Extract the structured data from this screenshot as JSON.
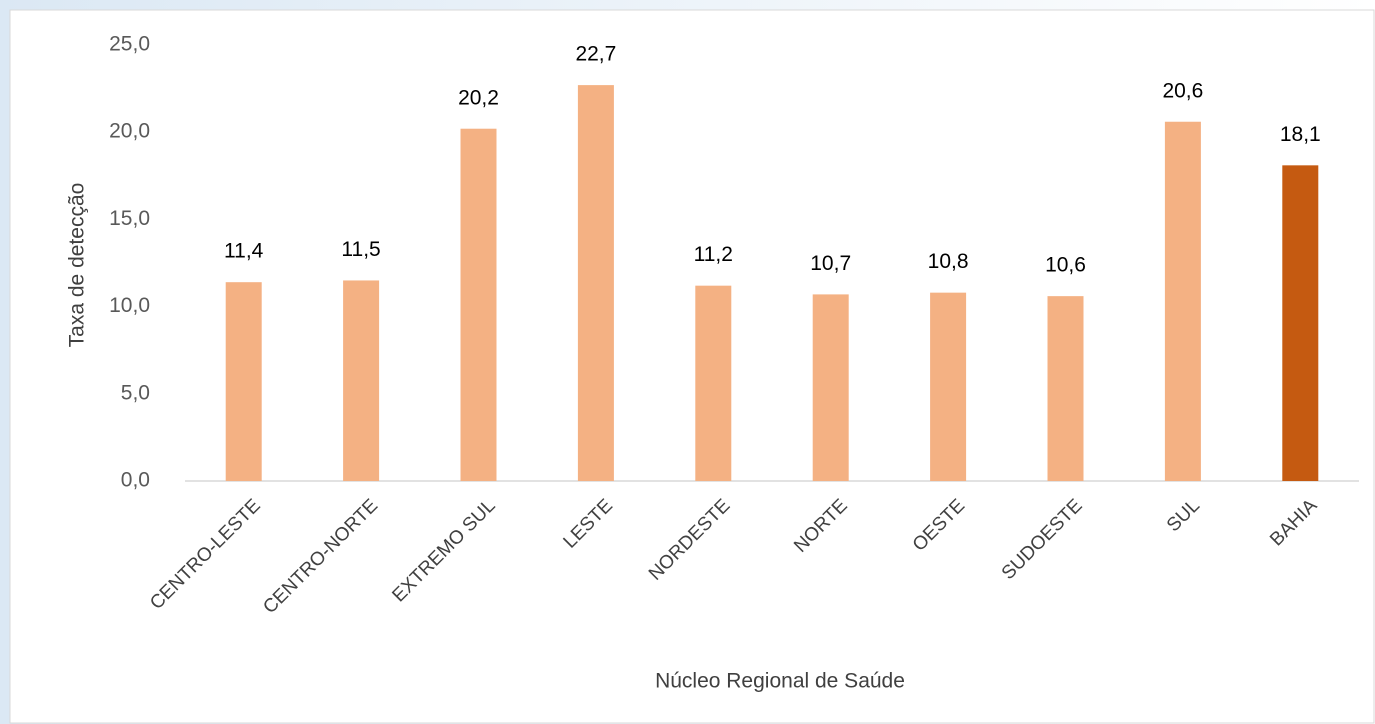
{
  "chart_data": {
    "type": "bar",
    "categories": [
      "CENTRO-LESTE",
      "CENTRO-NORTE",
      "EXTREMO SUL",
      "LESTE",
      "NORDESTE",
      "NORTE",
      "OESTE",
      "SUDOESTE",
      "SUL",
      "BAHIA"
    ],
    "values": [
      11.4,
      11.5,
      20.2,
      22.7,
      11.2,
      10.7,
      10.8,
      10.6,
      20.6,
      18.1
    ],
    "value_labels": [
      "11,4",
      "11,5",
      "20,2",
      "22,7",
      "11,2",
      "10,7",
      "10,8",
      "10,6",
      "20,6",
      "18,1"
    ],
    "colors": [
      "#f4b183",
      "#f4b183",
      "#f4b183",
      "#f4b183",
      "#f4b183",
      "#f4b183",
      "#f4b183",
      "#f4b183",
      "#f4b183",
      "#c55a11"
    ],
    "xlabel": "Núcleo Regional de Saúde",
    "ylabel": "Taxa de detecção",
    "ylim": [
      0,
      25
    ],
    "yticks": [
      {
        "value": 0,
        "label": "0,0"
      },
      {
        "value": 5,
        "label": "5,0"
      },
      {
        "value": 10,
        "label": "10,0"
      },
      {
        "value": 15,
        "label": "15,0"
      },
      {
        "value": 20,
        "label": "20,0"
      },
      {
        "value": 25,
        "label": "25,0"
      }
    ],
    "grid": false
  }
}
